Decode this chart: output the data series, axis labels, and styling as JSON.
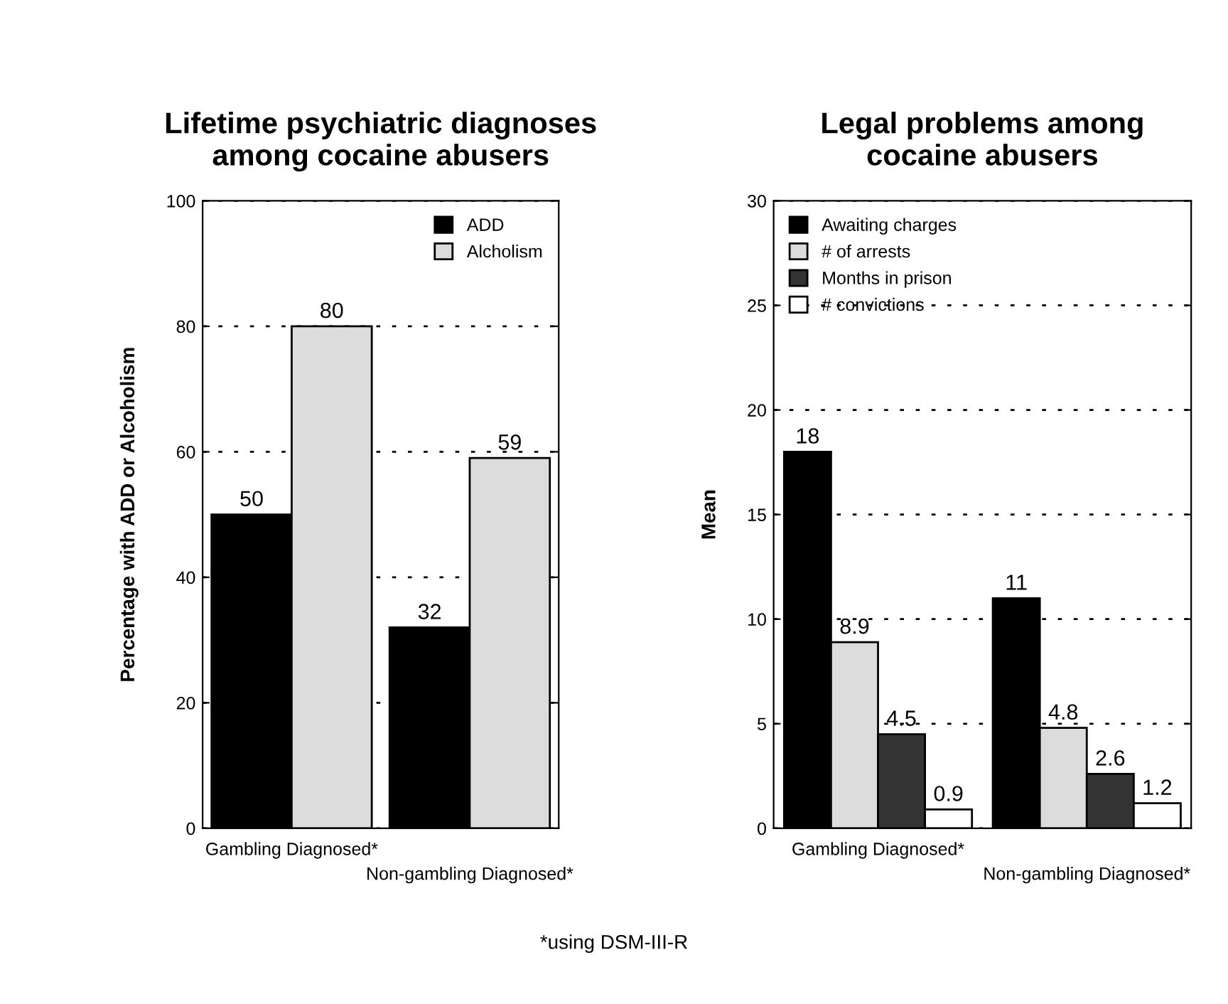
{
  "chart_data": [
    {
      "type": "bar",
      "title": "Lifetime psychiatric diagnoses\namong cocaine abusers",
      "ylabel": "Percentage with ADD or Alcoholism",
      "categories": [
        "Gambling Diagnosed*",
        "Non-gambling Diagnosed*"
      ],
      "series": [
        {
          "name": "ADD",
          "color": "#000000",
          "values": [
            50,
            32
          ]
        },
        {
          "name": "Alcholism",
          "color": "#dcdcdc",
          "values": [
            80,
            59
          ]
        }
      ],
      "ylim": [
        0,
        100
      ],
      "yticks": [
        0,
        20,
        40,
        60,
        80,
        100
      ],
      "grid": "y",
      "legend": "top right",
      "data_labels": true,
      "annotations": [
        "*using DSM-III-R"
      ]
    },
    {
      "type": "bar",
      "title": "Legal problems among\ncocaine abusers",
      "ylabel": "Mean",
      "categories": [
        "Gambling Diagnosed*",
        "Non-gambling Diagnosed*"
      ],
      "series": [
        {
          "name": "Awaiting charges",
          "color": "#000000",
          "values": [
            18,
            11
          ]
        },
        {
          "name": "# of arrests",
          "color": "#dcdcdc",
          "values": [
            8.9,
            4.8
          ]
        },
        {
          "name": "Months in prison",
          "color": "#333333",
          "values": [
            4.5,
            2.6
          ]
        },
        {
          "name": "# convictions",
          "color": "#ffffff",
          "values": [
            0.9,
            1.2
          ]
        }
      ],
      "ylim": [
        0,
        30
      ],
      "yticks": [
        0,
        5,
        10,
        15,
        20,
        25,
        30
      ],
      "grid": "y",
      "legend": "top left",
      "data_labels": true
    }
  ]
}
